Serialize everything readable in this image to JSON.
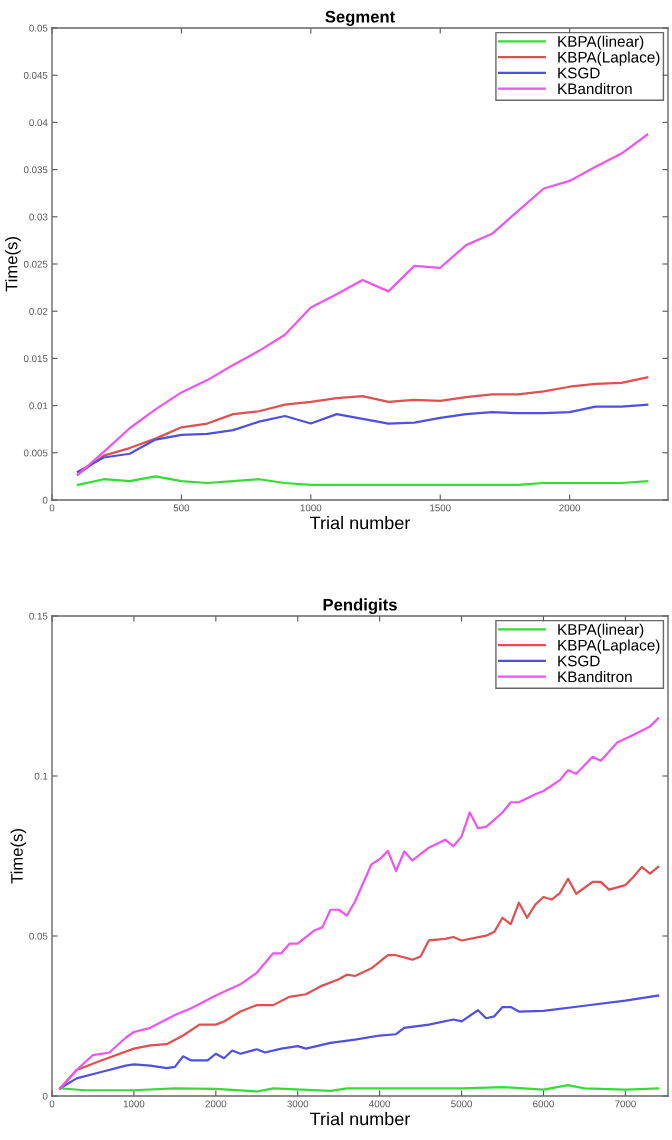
{
  "chart_data": [
    {
      "type": "line",
      "title": "Segment",
      "xlabel": "Trial number",
      "ylabel": "Time(s)",
      "legend": "top right",
      "grid": false,
      "xlim": [
        0,
        2380
      ],
      "ylim": [
        0,
        0.05
      ],
      "xticks": [
        0,
        500,
        1000,
        1500,
        2000
      ],
      "yticks": [
        0,
        0.005,
        0.01,
        0.015,
        0.02,
        0.025,
        0.03,
        0.035,
        0.04,
        0.045,
        0.05
      ],
      "series": [
        {
          "name": "KBPA(linear)",
          "color": "#33dd33",
          "x": [
            100,
            200,
            300,
            400,
            500,
            600,
            700,
            800,
            900,
            1000,
            1100,
            1200,
            1300,
            1400,
            1500,
            1600,
            1700,
            1800,
            1900,
            2000,
            2100,
            2200,
            2300
          ],
          "values": [
            0.0016,
            0.0022,
            0.002,
            0.0025,
            0.002,
            0.0018,
            0.002,
            0.0022,
            0.0018,
            0.0016,
            0.0016,
            0.0016,
            0.0016,
            0.0016,
            0.0016,
            0.0016,
            0.0016,
            0.0016,
            0.0018,
            0.0018,
            0.0018,
            0.0018,
            0.002
          ]
        },
        {
          "name": "KBPA(Laplace)",
          "color": "#e05050",
          "x": [
            100,
            200,
            300,
            400,
            500,
            600,
            700,
            800,
            900,
            1000,
            1100,
            1200,
            1300,
            1400,
            1500,
            1600,
            1700,
            1800,
            1900,
            2000,
            2100,
            2200,
            2300
          ],
          "values": [
            0.0027,
            0.0047,
            0.0055,
            0.0065,
            0.0077,
            0.0081,
            0.0091,
            0.0094,
            0.0101,
            0.0104,
            0.0108,
            0.011,
            0.0104,
            0.0106,
            0.0105,
            0.0109,
            0.0112,
            0.0112,
            0.0115,
            0.012,
            0.0123,
            0.0124,
            0.013
          ]
        },
        {
          "name": "KSGD",
          "color": "#5050e0",
          "x": [
            100,
            200,
            300,
            400,
            500,
            600,
            700,
            800,
            900,
            1000,
            1100,
            1200,
            1300,
            1400,
            1500,
            1600,
            1700,
            1800,
            1900,
            2000,
            2100,
            2200,
            2300
          ],
          "values": [
            0.003,
            0.0045,
            0.0049,
            0.0064,
            0.0069,
            0.007,
            0.0074,
            0.0083,
            0.0089,
            0.0081,
            0.0091,
            0.0086,
            0.0081,
            0.0082,
            0.0087,
            0.0091,
            0.0093,
            0.0092,
            0.0092,
            0.0093,
            0.0099,
            0.0099,
            0.0101
          ]
        },
        {
          "name": "KBanditron",
          "color": "#ee55ee",
          "x": [
            100,
            200,
            300,
            400,
            500,
            600,
            700,
            800,
            900,
            1000,
            1100,
            1200,
            1300,
            1400,
            1500,
            1600,
            1700,
            1800,
            1900,
            2000,
            2100,
            2200,
            2300
          ],
          "values": [
            0.0027,
            0.0051,
            0.0076,
            0.0096,
            0.0114,
            0.0127,
            0.0143,
            0.0158,
            0.0175,
            0.0204,
            0.0218,
            0.0233,
            0.0221,
            0.0248,
            0.0246,
            0.027,
            0.0282,
            0.0306,
            0.033,
            0.0338,
            0.0353,
            0.0367,
            0.0387
          ]
        }
      ]
    },
    {
      "type": "line",
      "title": "Pendigits",
      "xlabel": "Trial number",
      "ylabel": "Time(s)",
      "legend": "top right",
      "grid": false,
      "xlim": [
        0,
        7520
      ],
      "ylim": [
        0,
        0.15
      ],
      "xticks": [
        0,
        1000,
        2000,
        3000,
        4000,
        5000,
        6000,
        7000
      ],
      "yticks": [
        0,
        0.05,
        0.1,
        0.15
      ],
      "series": [
        {
          "name": "KBPA(linear)",
          "color": "#33dd33",
          "x": [
            100,
            400,
            1000,
            1500,
            2000,
            2500,
            2700,
            3400,
            3600,
            5000,
            5500,
            6000,
            6300,
            6500,
            7000,
            7400
          ],
          "values": [
            0.0024,
            0.0018,
            0.0018,
            0.0024,
            0.0022,
            0.0014,
            0.0024,
            0.0016,
            0.0024,
            0.0024,
            0.0028,
            0.002,
            0.0034,
            0.0024,
            0.002,
            0.0024
          ]
        },
        {
          "name": "KBPA(Laplace)",
          "color": "#e05050",
          "x": [
            100,
            300,
            600,
            1000,
            1200,
            1400,
            1600,
            1800,
            2000,
            2100,
            2300,
            2500,
            2700,
            2900,
            3100,
            3300,
            3500,
            3600,
            3700,
            3900,
            4100,
            4200,
            4400,
            4500,
            4600,
            4800,
            4900,
            5000,
            5300,
            5400,
            5500,
            5600,
            5700,
            5800,
            5900,
            6000,
            6100,
            6200,
            6300,
            6400,
            6600,
            6700,
            6800,
            7000,
            7100,
            7200,
            7300,
            7400
          ],
          "values": [
            0.0024,
            0.0081,
            0.0111,
            0.0148,
            0.0158,
            0.0162,
            0.0189,
            0.0223,
            0.0223,
            0.0233,
            0.0264,
            0.0284,
            0.0284,
            0.031,
            0.0318,
            0.0345,
            0.0365,
            0.0379,
            0.0375,
            0.0399,
            0.044,
            0.044,
            0.0426,
            0.0436,
            0.0486,
            0.0491,
            0.0497,
            0.0486,
            0.0501,
            0.0513,
            0.0557,
            0.0537,
            0.0604,
            0.0557,
            0.0598,
            0.0622,
            0.0614,
            0.0634,
            0.0679,
            0.0632,
            0.0669,
            0.0669,
            0.0645,
            0.0659,
            0.0685,
            0.0716,
            0.0695,
            0.0716
          ]
        },
        {
          "name": "KSGD",
          "color": "#5050e0",
          "x": [
            100,
            300,
            600,
            900,
            1000,
            1200,
            1400,
            1500,
            1600,
            1700,
            1900,
            2000,
            2100,
            2200,
            2300,
            2500,
            2600,
            2800,
            3000,
            3100,
            3400,
            3700,
            4000,
            4200,
            4300,
            4600,
            4900,
            5000,
            5200,
            5300,
            5400,
            5500,
            5600,
            5700,
            6000,
            6500,
            7000,
            7400
          ],
          "values": [
            0.0024,
            0.0055,
            0.0075,
            0.0095,
            0.0099,
            0.0095,
            0.0087,
            0.0091,
            0.0124,
            0.0111,
            0.0111,
            0.0132,
            0.0118,
            0.0142,
            0.0132,
            0.0146,
            0.0136,
            0.0148,
            0.0156,
            0.0148,
            0.0166,
            0.0176,
            0.0189,
            0.0193,
            0.0213,
            0.0223,
            0.0239,
            0.0233,
            0.0268,
            0.0243,
            0.0249,
            0.0278,
            0.0278,
            0.0264,
            0.0266,
            0.0282,
            0.0298,
            0.0314
          ]
        },
        {
          "name": "KBanditron",
          "color": "#ee55ee",
          "x": [
            100,
            300,
            500,
            700,
            900,
            1000,
            1200,
            1500,
            1700,
            2000,
            2300,
            2500,
            2700,
            2800,
            2900,
            3000,
            3200,
            3300,
            3400,
            3500,
            3600,
            3700,
            3900,
            4000,
            4100,
            4200,
            4300,
            4400,
            4600,
            4800,
            4900,
            5000,
            5100,
            5200,
            5300,
            5500,
            5600,
            5700,
            5900,
            6000,
            6200,
            6300,
            6400,
            6600,
            6700,
            6900,
            7100,
            7300,
            7400
          ],
          "values": [
            0.0024,
            0.0081,
            0.0128,
            0.0136,
            0.0182,
            0.02,
            0.0213,
            0.0253,
            0.0274,
            0.0314,
            0.0349,
            0.0385,
            0.0446,
            0.0446,
            0.0476,
            0.0476,
            0.0517,
            0.0527,
            0.0582,
            0.0582,
            0.0564,
            0.0608,
            0.0724,
            0.074,
            0.0766,
            0.0703,
            0.0764,
            0.0736,
            0.0776,
            0.0801,
            0.078,
            0.0811,
            0.0886,
            0.0837,
            0.0841,
            0.0886,
            0.0918,
            0.0918,
            0.0943,
            0.0953,
            0.0987,
            0.1018,
            0.1007,
            0.106,
            0.1048,
            0.1105,
            0.1129,
            0.1155,
            0.118
          ]
        }
      ]
    }
  ]
}
